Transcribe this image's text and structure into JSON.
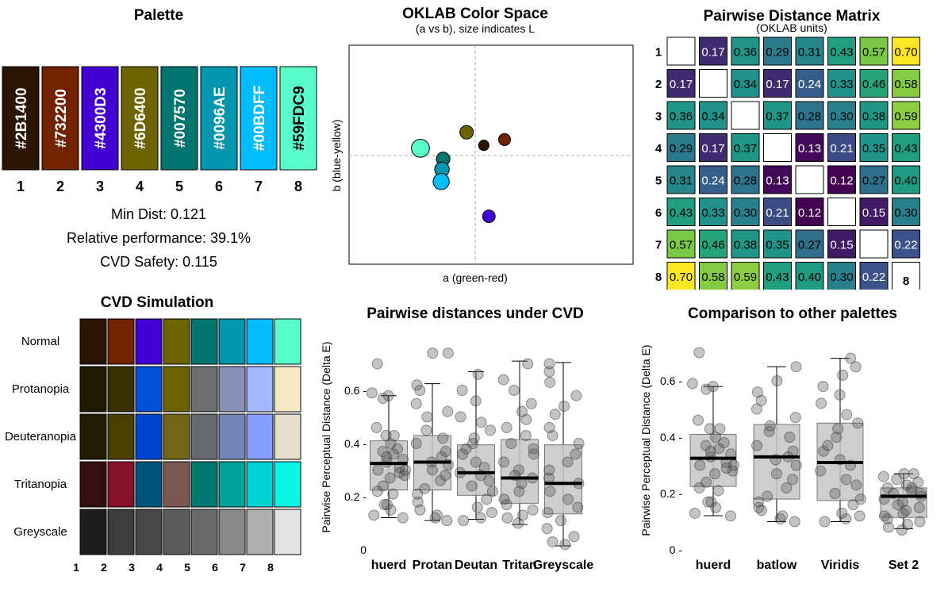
{
  "palette": {
    "title": "Palette",
    "swatches": [
      {
        "n": "1",
        "hex": "#2B1400"
      },
      {
        "n": "2",
        "hex": "#732200"
      },
      {
        "n": "3",
        "hex": "#4300D3"
      },
      {
        "n": "4",
        "hex": "#6D6400"
      },
      {
        "n": "5",
        "hex": "#007570"
      },
      {
        "n": "6",
        "hex": "#0096AE"
      },
      {
        "n": "7",
        "hex": "#00BDFF"
      },
      {
        "n": "8",
        "hex": "#59FDC9"
      }
    ],
    "min_dist": "Min Dist: 0.121",
    "relative_performance": "Relative performance: 39.1%",
    "cvd_safety": "CVD Safety: 0.115"
  },
  "chart_data": [
    {
      "type": "scatter",
      "title": "OKLAB Color Space",
      "subtitle": "(a vs b), size indicates L",
      "xlabel": "a (green-red)",
      "ylabel": "b (blue-yellow)",
      "points": [
        {
          "hex": "#2B1400",
          "a": 0.022,
          "b": 0.035,
          "L": 0.22
        },
        {
          "hex": "#732200",
          "a": 0.075,
          "b": 0.055,
          "L": 0.36
        },
        {
          "hex": "#4300D3",
          "a": 0.035,
          "b": -0.21,
          "L": 0.42
        },
        {
          "hex": "#6D6400",
          "a": -0.022,
          "b": 0.08,
          "L": 0.5
        },
        {
          "hex": "#007570",
          "a": -0.082,
          "b": -0.012,
          "L": 0.51
        },
        {
          "hex": "#0096AE",
          "a": -0.085,
          "b": -0.048,
          "L": 0.6
        },
        {
          "hex": "#00BDFF",
          "a": -0.087,
          "b": -0.09,
          "L": 0.74
        },
        {
          "hex": "#59FDC9",
          "a": -0.14,
          "b": 0.025,
          "L": 0.91
        }
      ]
    },
    {
      "type": "heatmap",
      "title": "Pairwise Distance Matrix",
      "subtitle": "(OKLAB units)",
      "labels": [
        "1",
        "2",
        "3",
        "4",
        "5",
        "6",
        "7",
        "8"
      ],
      "matrix": [
        [
          null,
          0.17,
          0.36,
          0.29,
          0.31,
          0.43,
          0.57,
          0.7
        ],
        [
          0.17,
          null,
          0.34,
          0.17,
          0.24,
          0.33,
          0.46,
          0.58
        ],
        [
          0.36,
          0.34,
          null,
          0.37,
          0.28,
          0.3,
          0.38,
          0.59
        ],
        [
          0.29,
          0.17,
          0.37,
          null,
          0.13,
          0.21,
          0.35,
          0.43
        ],
        [
          0.31,
          0.24,
          0.28,
          0.13,
          null,
          0.12,
          0.27,
          0.4
        ],
        [
          0.43,
          0.33,
          0.3,
          0.21,
          0.12,
          null,
          0.15,
          0.3
        ],
        [
          0.57,
          0.46,
          0.38,
          0.35,
          0.27,
          0.15,
          null,
          0.22
        ],
        [
          0.7,
          0.58,
          0.59,
          0.43,
          0.4,
          0.3,
          0.22,
          null
        ]
      ]
    },
    {
      "type": "table",
      "title": "CVD Simulation",
      "columns": [
        "1",
        "2",
        "3",
        "4",
        "5",
        "6",
        "7",
        "8"
      ],
      "rows": [
        {
          "name": "Normal",
          "colors": [
            "#2B1400",
            "#732200",
            "#4300D3",
            "#6D6400",
            "#007570",
            "#0096AE",
            "#00BDFF",
            "#59FDC9"
          ]
        },
        {
          "name": "Protanopia",
          "colors": [
            "#201A00",
            "#3B3100",
            "#0050D8",
            "#6D6000",
            "#6E6E6E",
            "#8891B5",
            "#A2B8FF",
            "#F5EAC5"
          ]
        },
        {
          "name": "Deuteranopia",
          "colors": [
            "#231C00",
            "#4A3F00",
            "#0044CF",
            "#736518",
            "#666A70",
            "#7485B9",
            "#869EFF",
            "#E5DECC"
          ]
        },
        {
          "name": "Tritanopia",
          "colors": [
            "#33100F",
            "#861029",
            "#04537A",
            "#7A5851",
            "#007A70",
            "#00A39B",
            "#00D1D1",
            "#08F6E3"
          ]
        },
        {
          "name": "Greyscale",
          "colors": [
            "#1D1D1D",
            "#3D3D3D",
            "#484848",
            "#5C5C5C",
            "#6A6A6A",
            "#888888",
            "#AFAFAF",
            "#E3E3E3"
          ]
        }
      ]
    },
    {
      "type": "box",
      "title": "Pairwise distances under CVD",
      "ylabel": "Pairwise Perceptual Distance (Delta E)",
      "ylim": [
        0,
        0.75
      ],
      "yticks": [
        0,
        0.2,
        0.4,
        0.6
      ],
      "ytick_labels": [
        "0",
        "0.2 -",
        "0.4 -",
        "0.6 -"
      ],
      "categories": [
        "huerd",
        "Protan",
        "Deutan",
        "Tritan",
        "Greyscale"
      ],
      "boxes": [
        {
          "min": 0.121,
          "q1": 0.225,
          "median": 0.325,
          "q3": 0.41,
          "max": 0.58
        },
        {
          "min": 0.11,
          "q1": 0.225,
          "median": 0.33,
          "q3": 0.43,
          "max": 0.625
        },
        {
          "min": 0.115,
          "q1": 0.205,
          "median": 0.29,
          "q3": 0.395,
          "max": 0.67
        },
        {
          "min": 0.095,
          "q1": 0.175,
          "median": 0.27,
          "q3": 0.415,
          "max": 0.71
        },
        {
          "min": 0.015,
          "q1": 0.135,
          "median": 0.25,
          "q3": 0.395,
          "max": 0.705
        }
      ],
      "points": [
        [
          0.12,
          0.13,
          0.15,
          0.17,
          0.17,
          0.21,
          0.22,
          0.24,
          0.27,
          0.28,
          0.29,
          0.3,
          0.3,
          0.31,
          0.33,
          0.34,
          0.35,
          0.36,
          0.37,
          0.38,
          0.4,
          0.43,
          0.43,
          0.46,
          0.57,
          0.58,
          0.59,
          0.7
        ],
        [
          0.11,
          0.12,
          0.13,
          0.15,
          0.18,
          0.21,
          0.23,
          0.26,
          0.28,
          0.3,
          0.32,
          0.33,
          0.35,
          0.37,
          0.4,
          0.42,
          0.45,
          0.5,
          0.52,
          0.55,
          0.6,
          0.62,
          0.74,
          0.74
        ],
        [
          0.11,
          0.12,
          0.14,
          0.16,
          0.19,
          0.22,
          0.24,
          0.26,
          0.28,
          0.29,
          0.31,
          0.33,
          0.36,
          0.38,
          0.4,
          0.42,
          0.45,
          0.48,
          0.5,
          0.56,
          0.6,
          0.66
        ],
        [
          0.1,
          0.12,
          0.13,
          0.15,
          0.17,
          0.19,
          0.22,
          0.25,
          0.27,
          0.28,
          0.3,
          0.33,
          0.36,
          0.38,
          0.4,
          0.43,
          0.46,
          0.49,
          0.52,
          0.55,
          0.6,
          0.64,
          0.7
        ],
        [
          0.02,
          0.03,
          0.05,
          0.08,
          0.11,
          0.14,
          0.16,
          0.19,
          0.22,
          0.25,
          0.27,
          0.3,
          0.33,
          0.36,
          0.4,
          0.43,
          0.46,
          0.51,
          0.54,
          0.58,
          0.63,
          0.67,
          0.7
        ]
      ]
    },
    {
      "type": "box",
      "title": "Comparison to other palettes",
      "ylabel": "Pairwise Perceptual Distance (Delta E)",
      "ylim": [
        0,
        0.75
      ],
      "yticks": [
        0,
        0.2,
        0.4,
        0.6
      ],
      "ytick_labels": [
        "0 -",
        "0.2 -",
        "0.4 -",
        "0.6 -"
      ],
      "categories": [
        "huerd",
        "batlow",
        "Viridis",
        "Set 2"
      ],
      "boxes": [
        {
          "min": 0.121,
          "q1": 0.225,
          "median": 0.325,
          "q3": 0.41,
          "max": 0.58
        },
        {
          "min": 0.1,
          "q1": 0.18,
          "median": 0.33,
          "q3": 0.445,
          "max": 0.65
        },
        {
          "min": 0.1,
          "q1": 0.175,
          "median": 0.31,
          "q3": 0.45,
          "max": 0.68
        },
        {
          "min": 0.075,
          "q1": 0.115,
          "median": 0.19,
          "q3": 0.22,
          "max": 0.27
        }
      ],
      "points": [
        [
          0.12,
          0.13,
          0.15,
          0.17,
          0.17,
          0.21,
          0.22,
          0.24,
          0.27,
          0.28,
          0.29,
          0.3,
          0.3,
          0.31,
          0.33,
          0.34,
          0.35,
          0.36,
          0.37,
          0.38,
          0.4,
          0.43,
          0.43,
          0.46,
          0.57,
          0.58,
          0.59,
          0.7
        ],
        [
          0.1,
          0.11,
          0.12,
          0.14,
          0.15,
          0.17,
          0.19,
          0.22,
          0.25,
          0.27,
          0.3,
          0.32,
          0.33,
          0.35,
          0.37,
          0.4,
          0.42,
          0.44,
          0.47,
          0.5,
          0.53,
          0.56,
          0.6,
          0.65
        ],
        [
          0.1,
          0.11,
          0.12,
          0.13,
          0.16,
          0.18,
          0.2,
          0.23,
          0.25,
          0.28,
          0.3,
          0.32,
          0.35,
          0.37,
          0.4,
          0.43,
          0.45,
          0.48,
          0.52,
          0.55,
          0.58,
          0.62,
          0.65,
          0.68
        ],
        [
          0.07,
          0.08,
          0.09,
          0.1,
          0.11,
          0.12,
          0.13,
          0.14,
          0.15,
          0.16,
          0.17,
          0.18,
          0.19,
          0.2,
          0.2,
          0.21,
          0.22,
          0.22,
          0.23,
          0.24,
          0.25,
          0.26,
          0.27,
          0.27
        ]
      ]
    }
  ]
}
